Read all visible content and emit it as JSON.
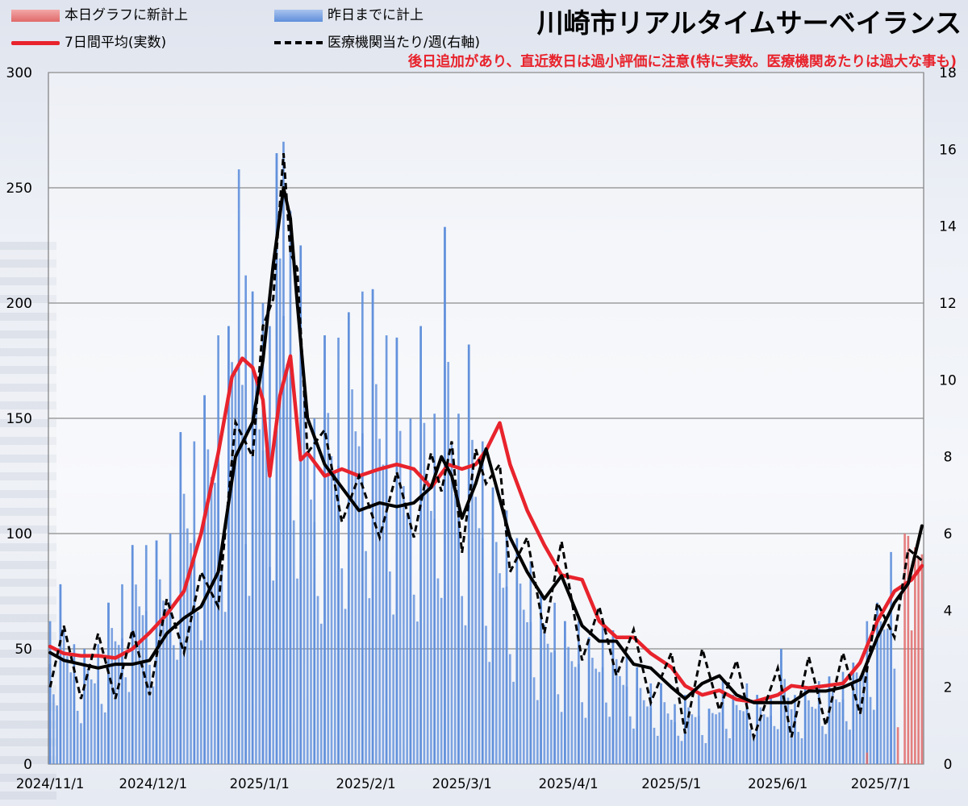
{
  "title": "川崎市リアルタイムサーベイランス",
  "warning": "後日追加があり、直近数日は過小評価に注意(特に実数。医療機関あたりは過大な事も)",
  "legend": {
    "today": "本日グラフに新計上",
    "yesterday": "昨日までに計上",
    "avg": "7日間平均(実数)",
    "per_inst": "医療機関当たり/週(右軸)"
  },
  "colors": {
    "today_bar": "#e06a6a",
    "yesterday_bar": "#5f8fdb",
    "avg_line": "#e8232c",
    "per_inst_line": "#000000",
    "grid": "#8c8c8c"
  },
  "chart_data": {
    "type": "bar",
    "x_tick_labels": [
      "2024/11/1",
      "2024/12/1",
      "2025/1/1",
      "2025/2/1",
      "2025/3/1",
      "2025/4/1",
      "2025/5/1",
      "2025/6/1",
      "2025/7/1"
    ],
    "x_range": [
      "2024-11-01",
      "2025-07-13"
    ],
    "y_left": {
      "min": 0,
      "max": 300,
      "ticks": [
        0,
        50,
        100,
        150,
        200,
        250,
        300
      ]
    },
    "y_right": {
      "min": 0,
      "max": 18,
      "ticks": [
        0,
        2,
        4,
        6,
        8,
        10,
        12,
        14,
        16,
        18
      ]
    },
    "grid": true,
    "legend_position": "top",
    "series": [
      {
        "name": "昨日までに計上",
        "kind": "bar",
        "axis": "left",
        "x": [
          "2024-11-01",
          "2024-11-04",
          "2024-11-08",
          "2024-11-11",
          "2024-11-15",
          "2024-11-18",
          "2024-11-22",
          "2024-11-25",
          "2024-11-29",
          "2024-12-02",
          "2024-12-06",
          "2024-12-09",
          "2024-12-13",
          "2024-12-16",
          "2024-12-20",
          "2024-12-23",
          "2024-12-26",
          "2024-12-28",
          "2024-12-30",
          "2025-01-02",
          "2025-01-04",
          "2025-01-06",
          "2025-01-08",
          "2025-01-10",
          "2025-01-13",
          "2025-01-17",
          "2025-01-20",
          "2025-01-24",
          "2025-01-27",
          "2025-01-31",
          "2025-02-03",
          "2025-02-07",
          "2025-02-10",
          "2025-02-14",
          "2025-02-17",
          "2025-02-21",
          "2025-02-24",
          "2025-02-28",
          "2025-03-03",
          "2025-03-07",
          "2025-03-10",
          "2025-03-14",
          "2025-03-17",
          "2025-03-21",
          "2025-03-24",
          "2025-03-28",
          "2025-03-31",
          "2025-04-04",
          "2025-04-07",
          "2025-04-11",
          "2025-04-14",
          "2025-04-18",
          "2025-04-21",
          "2025-04-25",
          "2025-04-28",
          "2025-05-02",
          "2025-05-05",
          "2025-05-09",
          "2025-05-12",
          "2025-05-16",
          "2025-05-19",
          "2025-05-23",
          "2025-05-26",
          "2025-05-30",
          "2025-06-02",
          "2025-06-06",
          "2025-06-09",
          "2025-06-13",
          "2025-06-16",
          "2025-06-20",
          "2025-06-23",
          "2025-06-27",
          "2025-06-30",
          "2025-07-04"
        ],
        "values": [
          62,
          78,
          52,
          50,
          52,
          70,
          78,
          95,
          95,
          97,
          100,
          144,
          140,
          160,
          186,
          190,
          258,
          212,
          205,
          200,
          190,
          265,
          270,
          240,
          225,
          150,
          186,
          185,
          196,
          205,
          206,
          186,
          185,
          150,
          190,
          152,
          233,
          152,
          182,
          140,
          120,
          110,
          98,
          88,
          75,
          70,
          62,
          62,
          55,
          60,
          58,
          48,
          42,
          35,
          35,
          26,
          30,
          30,
          24,
          36,
          30,
          35,
          30,
          30,
          50,
          30,
          33,
          36,
          38,
          40,
          44,
          62,
          70,
          92
        ]
      },
      {
        "name": "本日グラフに新計上",
        "kind": "bar",
        "axis": "left",
        "x": [
          "2025-06-27",
          "2025-07-06",
          "2025-07-08",
          "2025-07-09",
          "2025-07-10",
          "2025-07-11",
          "2025-07-12",
          "2025-07-13"
        ],
        "values": [
          5,
          16,
          100,
          99,
          58,
          94,
          90,
          91
        ]
      },
      {
        "name": "7日間平均(実数)",
        "kind": "line",
        "axis": "left",
        "x": [
          "2024-11-01",
          "2024-11-05",
          "2024-11-10",
          "2024-11-15",
          "2024-11-20",
          "2024-11-25",
          "2024-11-30",
          "2024-12-05",
          "2024-12-10",
          "2024-12-15",
          "2024-12-20",
          "2024-12-24",
          "2024-12-27",
          "2024-12-30",
          "2025-01-02",
          "2025-01-04",
          "2025-01-07",
          "2025-01-10",
          "2025-01-13",
          "2025-01-15",
          "2025-01-20",
          "2025-01-25",
          "2025-01-30",
          "2025-02-05",
          "2025-02-10",
          "2025-02-15",
          "2025-02-20",
          "2025-02-23",
          "2025-02-25",
          "2025-03-01",
          "2025-03-05",
          "2025-03-08",
          "2025-03-12",
          "2025-03-15",
          "2025-03-20",
          "2025-03-25",
          "2025-03-30",
          "2025-04-05",
          "2025-04-10",
          "2025-04-15",
          "2025-04-20",
          "2025-04-25",
          "2025-05-01",
          "2025-05-05",
          "2025-05-10",
          "2025-05-15",
          "2025-05-20",
          "2025-05-25",
          "2025-06-01",
          "2025-06-05",
          "2025-06-10",
          "2025-06-15",
          "2025-06-20",
          "2025-06-25",
          "2025-06-30",
          "2025-07-05",
          "2025-07-10",
          "2025-07-13"
        ],
        "values": [
          51,
          48,
          47,
          47,
          46,
          50,
          57,
          65,
          75,
          100,
          135,
          168,
          176,
          172,
          158,
          125,
          160,
          177,
          132,
          135,
          125,
          128,
          125,
          128,
          130,
          128,
          120,
          126,
          130,
          128,
          130,
          136,
          148,
          130,
          110,
          95,
          82,
          80,
          62,
          55,
          55,
          48,
          42,
          34,
          30,
          32,
          28,
          27,
          30,
          34,
          33,
          34,
          35,
          44,
          62,
          75,
          80,
          86
        ]
      },
      {
        "name": "医療機関当たり/週(右軸)",
        "kind": "line",
        "dashed": true,
        "axis": "right",
        "x": [
          "2024-11-01",
          "2024-11-05",
          "2024-11-10",
          "2024-11-15",
          "2024-11-20",
          "2024-11-25",
          "2024-11-30",
          "2024-12-05",
          "2024-12-10",
          "2024-12-15",
          "2024-12-20",
          "2024-12-25",
          "2024-12-30",
          "2025-01-02",
          "2025-01-05",
          "2025-01-08",
          "2025-01-10",
          "2025-01-12",
          "2025-01-15",
          "2025-01-20",
          "2025-01-25",
          "2025-01-30",
          "2025-02-05",
          "2025-02-10",
          "2025-02-15",
          "2025-02-20",
          "2025-02-23",
          "2025-02-26",
          "2025-03-01",
          "2025-03-05",
          "2025-03-08",
          "2025-03-12",
          "2025-03-15",
          "2025-03-20",
          "2025-03-25",
          "2025-03-30",
          "2025-04-05",
          "2025-04-10",
          "2025-04-15",
          "2025-04-20",
          "2025-04-25",
          "2025-05-01",
          "2025-05-05",
          "2025-05-10",
          "2025-05-15",
          "2025-05-20",
          "2025-05-25",
          "2025-06-01",
          "2025-06-05",
          "2025-06-10",
          "2025-06-15",
          "2025-06-20",
          "2025-06-25",
          "2025-06-30",
          "2025-07-05",
          "2025-07-09",
          "2025-07-13"
        ],
        "values": [
          2.9,
          2.7,
          2.6,
          2.5,
          2.6,
          2.6,
          2.7,
          3.4,
          3.8,
          4.1,
          5.0,
          8.0,
          8.9,
          10.5,
          13.0,
          15.0,
          14.2,
          12.0,
          9.0,
          7.8,
          7.2,
          6.6,
          6.8,
          6.7,
          6.8,
          7.2,
          8.0,
          7.5,
          6.4,
          7.3,
          8.2,
          6.9,
          5.9,
          5.0,
          4.3,
          4.9,
          3.6,
          3.2,
          3.2,
          2.6,
          2.5,
          2.0,
          1.7,
          2.1,
          2.3,
          1.8,
          1.6,
          1.6,
          1.6,
          1.9,
          1.9,
          2.0,
          2.2,
          3.3,
          4.2,
          4.7,
          6.2
        ]
      }
    ]
  }
}
